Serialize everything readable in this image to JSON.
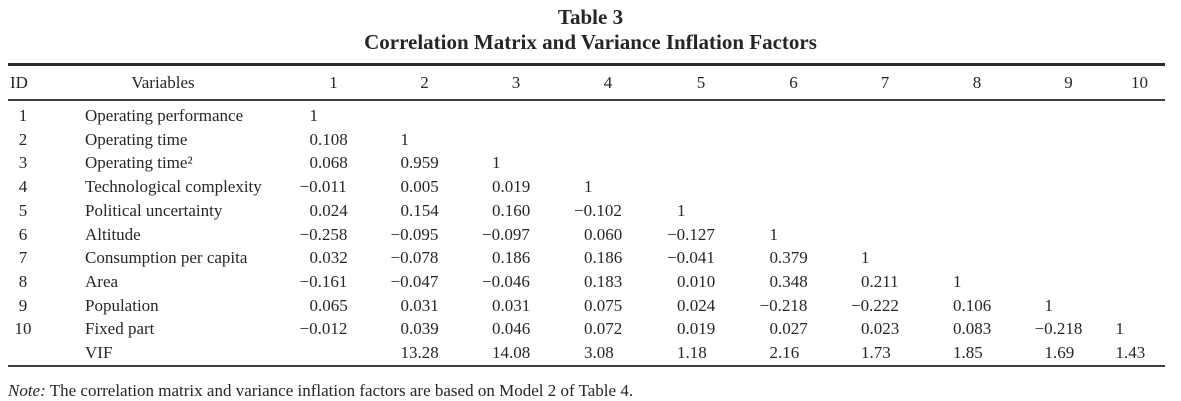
{
  "title": "Table 3",
  "subtitle": "Correlation Matrix and Variance Inflation Factors",
  "table": {
    "id_header": "ID",
    "variables_header": "Variables",
    "numeric_headers": [
      "1",
      "2",
      "3",
      "4",
      "5",
      "6",
      "7",
      "8",
      "9",
      "10"
    ],
    "rows": [
      {
        "id": "1",
        "variable": "Operating performance",
        "values": [
          "1",
          "",
          "",
          "",
          "",
          "",
          "",
          "",
          "",
          ""
        ]
      },
      {
        "id": "2",
        "variable": "Operating time",
        "values": [
          "0.108",
          "1",
          "",
          "",
          "",
          "",
          "",
          "",
          "",
          ""
        ]
      },
      {
        "id": "3",
        "variable": "Operating time²",
        "values": [
          "0.068",
          "0.959",
          "1",
          "",
          "",
          "",
          "",
          "",
          "",
          ""
        ]
      },
      {
        "id": "4",
        "variable": "Technological complexity",
        "values": [
          "−0.011",
          "0.005",
          "0.019",
          "1",
          "",
          "",
          "",
          "",
          "",
          ""
        ]
      },
      {
        "id": "5",
        "variable": "Political uncertainty",
        "values": [
          "0.024",
          "0.154",
          "0.160",
          "−0.102",
          "1",
          "",
          "",
          "",
          "",
          ""
        ]
      },
      {
        "id": "6",
        "variable": "Altitude",
        "values": [
          "−0.258",
          "−0.095",
          "−0.097",
          "0.060",
          "−0.127",
          "1",
          "",
          "",
          "",
          ""
        ]
      },
      {
        "id": "7",
        "variable": "Consumption per capita",
        "values": [
          "0.032",
          "−0.078",
          "0.186",
          "0.186",
          "−0.041",
          "0.379",
          "1",
          "",
          "",
          ""
        ]
      },
      {
        "id": "8",
        "variable": "Area",
        "values": [
          "−0.161",
          "−0.047",
          "−0.046",
          "0.183",
          "0.010",
          "0.348",
          "0.211",
          "1",
          "",
          ""
        ]
      },
      {
        "id": "9",
        "variable": "Population",
        "values": [
          "0.065",
          "0.031",
          "0.031",
          "0.075",
          "0.024",
          "−0.218",
          "−0.222",
          "0.106",
          "1",
          ""
        ]
      },
      {
        "id": "10",
        "variable": "Fixed part",
        "values": [
          "−0.012",
          "0.039",
          "0.046",
          "0.072",
          "0.019",
          "0.027",
          "0.023",
          "0.083",
          "−0.218",
          "1"
        ]
      },
      {
        "id": "",
        "variable": "VIF",
        "values": [
          "",
          "13.28",
          "14.08",
          "3.08",
          "1.18",
          "2.16",
          "1.73",
          "1.85",
          "1.69",
          "1.43"
        ]
      }
    ]
  },
  "note": {
    "label": "Note:",
    "text": " The correlation matrix and variance inflation factors are based on Model 2 of Table 4."
  }
}
